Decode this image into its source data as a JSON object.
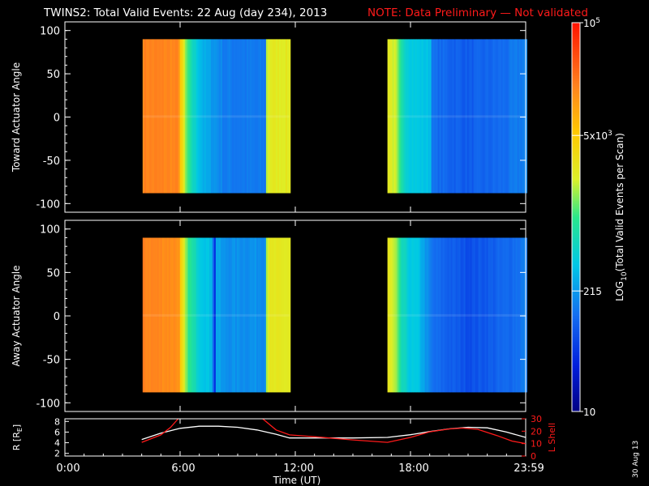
{
  "header": {
    "title": "TWINS2: Total Valid Events: 22 Aug (day 234), 2013",
    "note": "NOTE: Data Preliminary — Not validated",
    "note_color": "#ff1a1a",
    "date_stamp": "30 Aug 13"
  },
  "colors": {
    "background": "#000000",
    "foreground": "#ffffff",
    "lshell_line": "#ff1a1a",
    "r_line": "#ffffff"
  },
  "chart_data": [
    {
      "type": "heatmap",
      "panel": "top",
      "ylabel": "Toward Actuator Angle",
      "ylim": [
        -110,
        110
      ],
      "yticks": [
        100,
        50,
        0,
        -50,
        -100
      ],
      "xlim_hours": [
        0,
        24
      ],
      "data_angle_range": [
        -88,
        90
      ],
      "scans": [
        {
          "start": 4.05,
          "end": 11.7,
          "profile": [
            {
              "x": 4.05,
              "v": 0.84
            },
            {
              "x": 5.9,
              "v": 0.83
            },
            {
              "x": 5.95,
              "v": 0.73
            },
            {
              "x": 6.1,
              "v": 0.65
            },
            {
              "x": 6.25,
              "v": 0.55
            },
            {
              "x": 6.5,
              "v": 0.46
            },
            {
              "x": 6.8,
              "v": 0.4
            },
            {
              "x": 7.2,
              "v": 0.34
            },
            {
              "x": 7.9,
              "v": 0.3
            },
            {
              "x": 8.3,
              "v": 0.27
            },
            {
              "x": 10.4,
              "v": 0.26
            },
            {
              "x": 10.45,
              "v": 0.57
            },
            {
              "x": 10.6,
              "v": 0.62
            },
            {
              "x": 11.7,
              "v": 0.62
            }
          ]
        },
        {
          "start": 16.8,
          "end": 24.0,
          "profile": [
            {
              "x": 16.8,
              "v": 0.63
            },
            {
              "x": 17.2,
              "v": 0.58
            },
            {
              "x": 17.5,
              "v": 0.45
            },
            {
              "x": 17.9,
              "v": 0.4
            },
            {
              "x": 18.4,
              "v": 0.38
            },
            {
              "x": 19.0,
              "v": 0.37
            },
            {
              "x": 19.1,
              "v": 0.25
            },
            {
              "x": 21.0,
              "v": 0.22
            },
            {
              "x": 23.0,
              "v": 0.25
            },
            {
              "x": 24.0,
              "v": 0.28
            }
          ]
        }
      ]
    },
    {
      "type": "heatmap",
      "panel": "bottom",
      "ylabel": "Away Actuator Angle",
      "ylim": [
        -110,
        110
      ],
      "yticks": [
        100,
        50,
        0,
        -50,
        -100
      ],
      "xlim_hours": [
        0,
        24
      ],
      "data_angle_range": [
        -88,
        90
      ],
      "scans": [
        {
          "start": 4.05,
          "end": 11.7,
          "profile": [
            {
              "x": 4.05,
              "v": 0.84
            },
            {
              "x": 5.9,
              "v": 0.82
            },
            {
              "x": 5.95,
              "v": 0.72
            },
            {
              "x": 6.1,
              "v": 0.64
            },
            {
              "x": 6.3,
              "v": 0.53
            },
            {
              "x": 6.6,
              "v": 0.46
            },
            {
              "x": 7.0,
              "v": 0.4
            },
            {
              "x": 7.6,
              "v": 0.36
            },
            {
              "x": 7.8,
              "v": 0.1
            },
            {
              "x": 7.85,
              "v": 0.34
            },
            {
              "x": 8.2,
              "v": 0.3
            },
            {
              "x": 10.4,
              "v": 0.3
            },
            {
              "x": 10.45,
              "v": 0.58
            },
            {
              "x": 10.6,
              "v": 0.62
            },
            {
              "x": 11.7,
              "v": 0.62
            }
          ]
        },
        {
          "start": 16.8,
          "end": 24.0,
          "profile": [
            {
              "x": 16.8,
              "v": 0.63
            },
            {
              "x": 17.2,
              "v": 0.56
            },
            {
              "x": 17.5,
              "v": 0.44
            },
            {
              "x": 17.9,
              "v": 0.39
            },
            {
              "x": 18.4,
              "v": 0.37
            },
            {
              "x": 19.1,
              "v": 0.25
            },
            {
              "x": 21.0,
              "v": 0.2
            },
            {
              "x": 23.0,
              "v": 0.24
            },
            {
              "x": 24.0,
              "v": 0.27
            }
          ]
        }
      ]
    },
    {
      "type": "line",
      "panel": "orbit",
      "xlabel": "Time (UT)",
      "xlim_hours": [
        0,
        24
      ],
      "xticks": [
        0,
        6,
        12,
        18,
        24
      ],
      "xticklabels": [
        "0:00",
        "6:00",
        "12:00",
        "18:00",
        "23:59"
      ],
      "ylabel_left": "R [R",
      "ylabel_left_sub": "E",
      "ylabel_left_end": "]",
      "ylim_left": [
        1.5,
        8.5
      ],
      "yticks_left": [
        2,
        4,
        6,
        8
      ],
      "ylabel_right": "L Shell",
      "ylim_right": [
        0,
        30
      ],
      "yticks_right": [
        0,
        10,
        20,
        30
      ],
      "series": [
        {
          "axis": "left",
          "points": [
            [
              4.0,
              4.6
            ],
            [
              5.0,
              5.8
            ],
            [
              6.0,
              6.7
            ],
            [
              7.0,
              7.1
            ],
            [
              8.0,
              7.1
            ],
            [
              9.0,
              6.9
            ],
            [
              10.0,
              6.4
            ],
            [
              11.0,
              5.6
            ],
            [
              11.7,
              4.9
            ],
            [
              13.0,
              4.9
            ],
            [
              15.0,
              4.9
            ],
            [
              16.8,
              5.0
            ],
            [
              18.0,
              5.5
            ],
            [
              19.0,
              6.1
            ],
            [
              20.0,
              6.6
            ],
            [
              21.0,
              6.9
            ],
            [
              22.0,
              6.8
            ],
            [
              23.0,
              6.0
            ],
            [
              24.0,
              5.0
            ]
          ]
        },
        {
          "axis": "right",
          "segments": [
            [
              [
                4.0,
                11.0
              ],
              [
                5.0,
                17.0
              ],
              [
                5.5,
                23.0
              ],
              [
                5.9,
                30.0
              ]
            ],
            [
              [
                10.3,
                30.0
              ],
              [
                11.0,
                21.0
              ],
              [
                11.7,
                17.0
              ],
              [
                13.0,
                15.5
              ],
              [
                15.0,
                13.0
              ],
              [
                16.8,
                11.0
              ],
              [
                18.0,
                15.0
              ],
              [
                19.0,
                19.5
              ],
              [
                20.0,
                21.8
              ],
              [
                20.7,
                22.5
              ],
              [
                21.5,
                21.5
              ],
              [
                22.5,
                16.5
              ],
              [
                23.3,
                12.0
              ],
              [
                24.0,
                10.0
              ]
            ]
          ]
        }
      ]
    }
  ],
  "colorbar": {
    "label": "LOG",
    "label_sub": "10",
    "label_tail": "(Total Valid Events per Scan)",
    "ticks": [
      {
        "v": 1.0,
        "base": "10",
        "exp": "5"
      },
      {
        "v": 0.71,
        "base": "5x10",
        "exp": "3"
      },
      {
        "v": 0.31,
        "base": "215",
        "exp": ""
      },
      {
        "v": 0.0,
        "base": "10",
        "exp": ""
      }
    ]
  }
}
